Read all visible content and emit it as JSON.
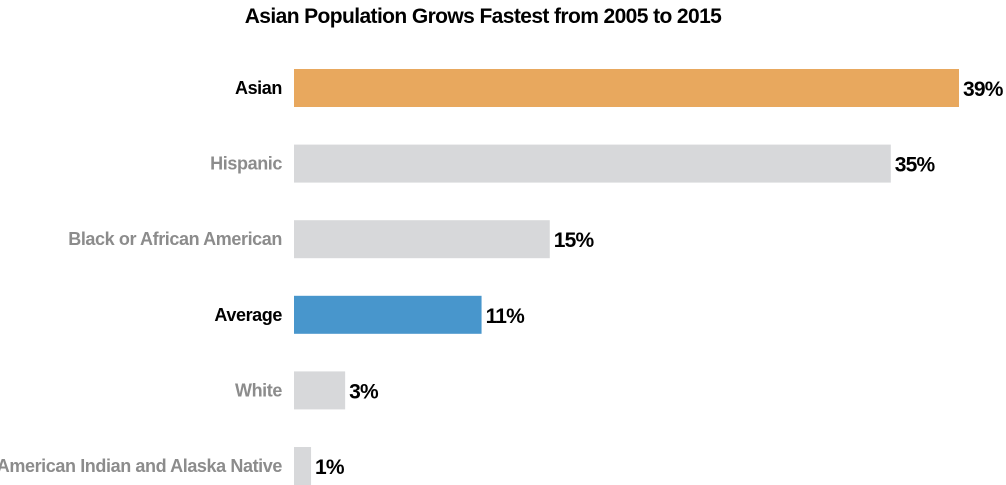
{
  "chart_data": {
    "type": "bar",
    "orientation": "horizontal",
    "title": "Asian Population Grows Fastest from 2005 to 2015",
    "xlabel": "",
    "ylabel": "",
    "xlim": [
      0,
      39
    ],
    "grid": false,
    "legend": "none",
    "categories": [
      "Asian",
      "Hispanic",
      "Black or African American",
      "Average",
      "White",
      "American Indian and Alaska Native"
    ],
    "values": [
      39,
      35,
      15,
      11,
      3,
      1
    ],
    "value_labels": [
      "39%",
      "35%",
      "15%",
      "11%",
      "3%",
      "1%"
    ],
    "bar_colors": [
      "#e8a85e",
      "#d7d8da",
      "#d7d8da",
      "#4896cc",
      "#d7d8da",
      "#d7d8da"
    ],
    "label_colors": [
      "#000000",
      "#8c8c8c",
      "#8c8c8c",
      "#000000",
      "#8c8c8c",
      "#8c8c8c"
    ]
  }
}
